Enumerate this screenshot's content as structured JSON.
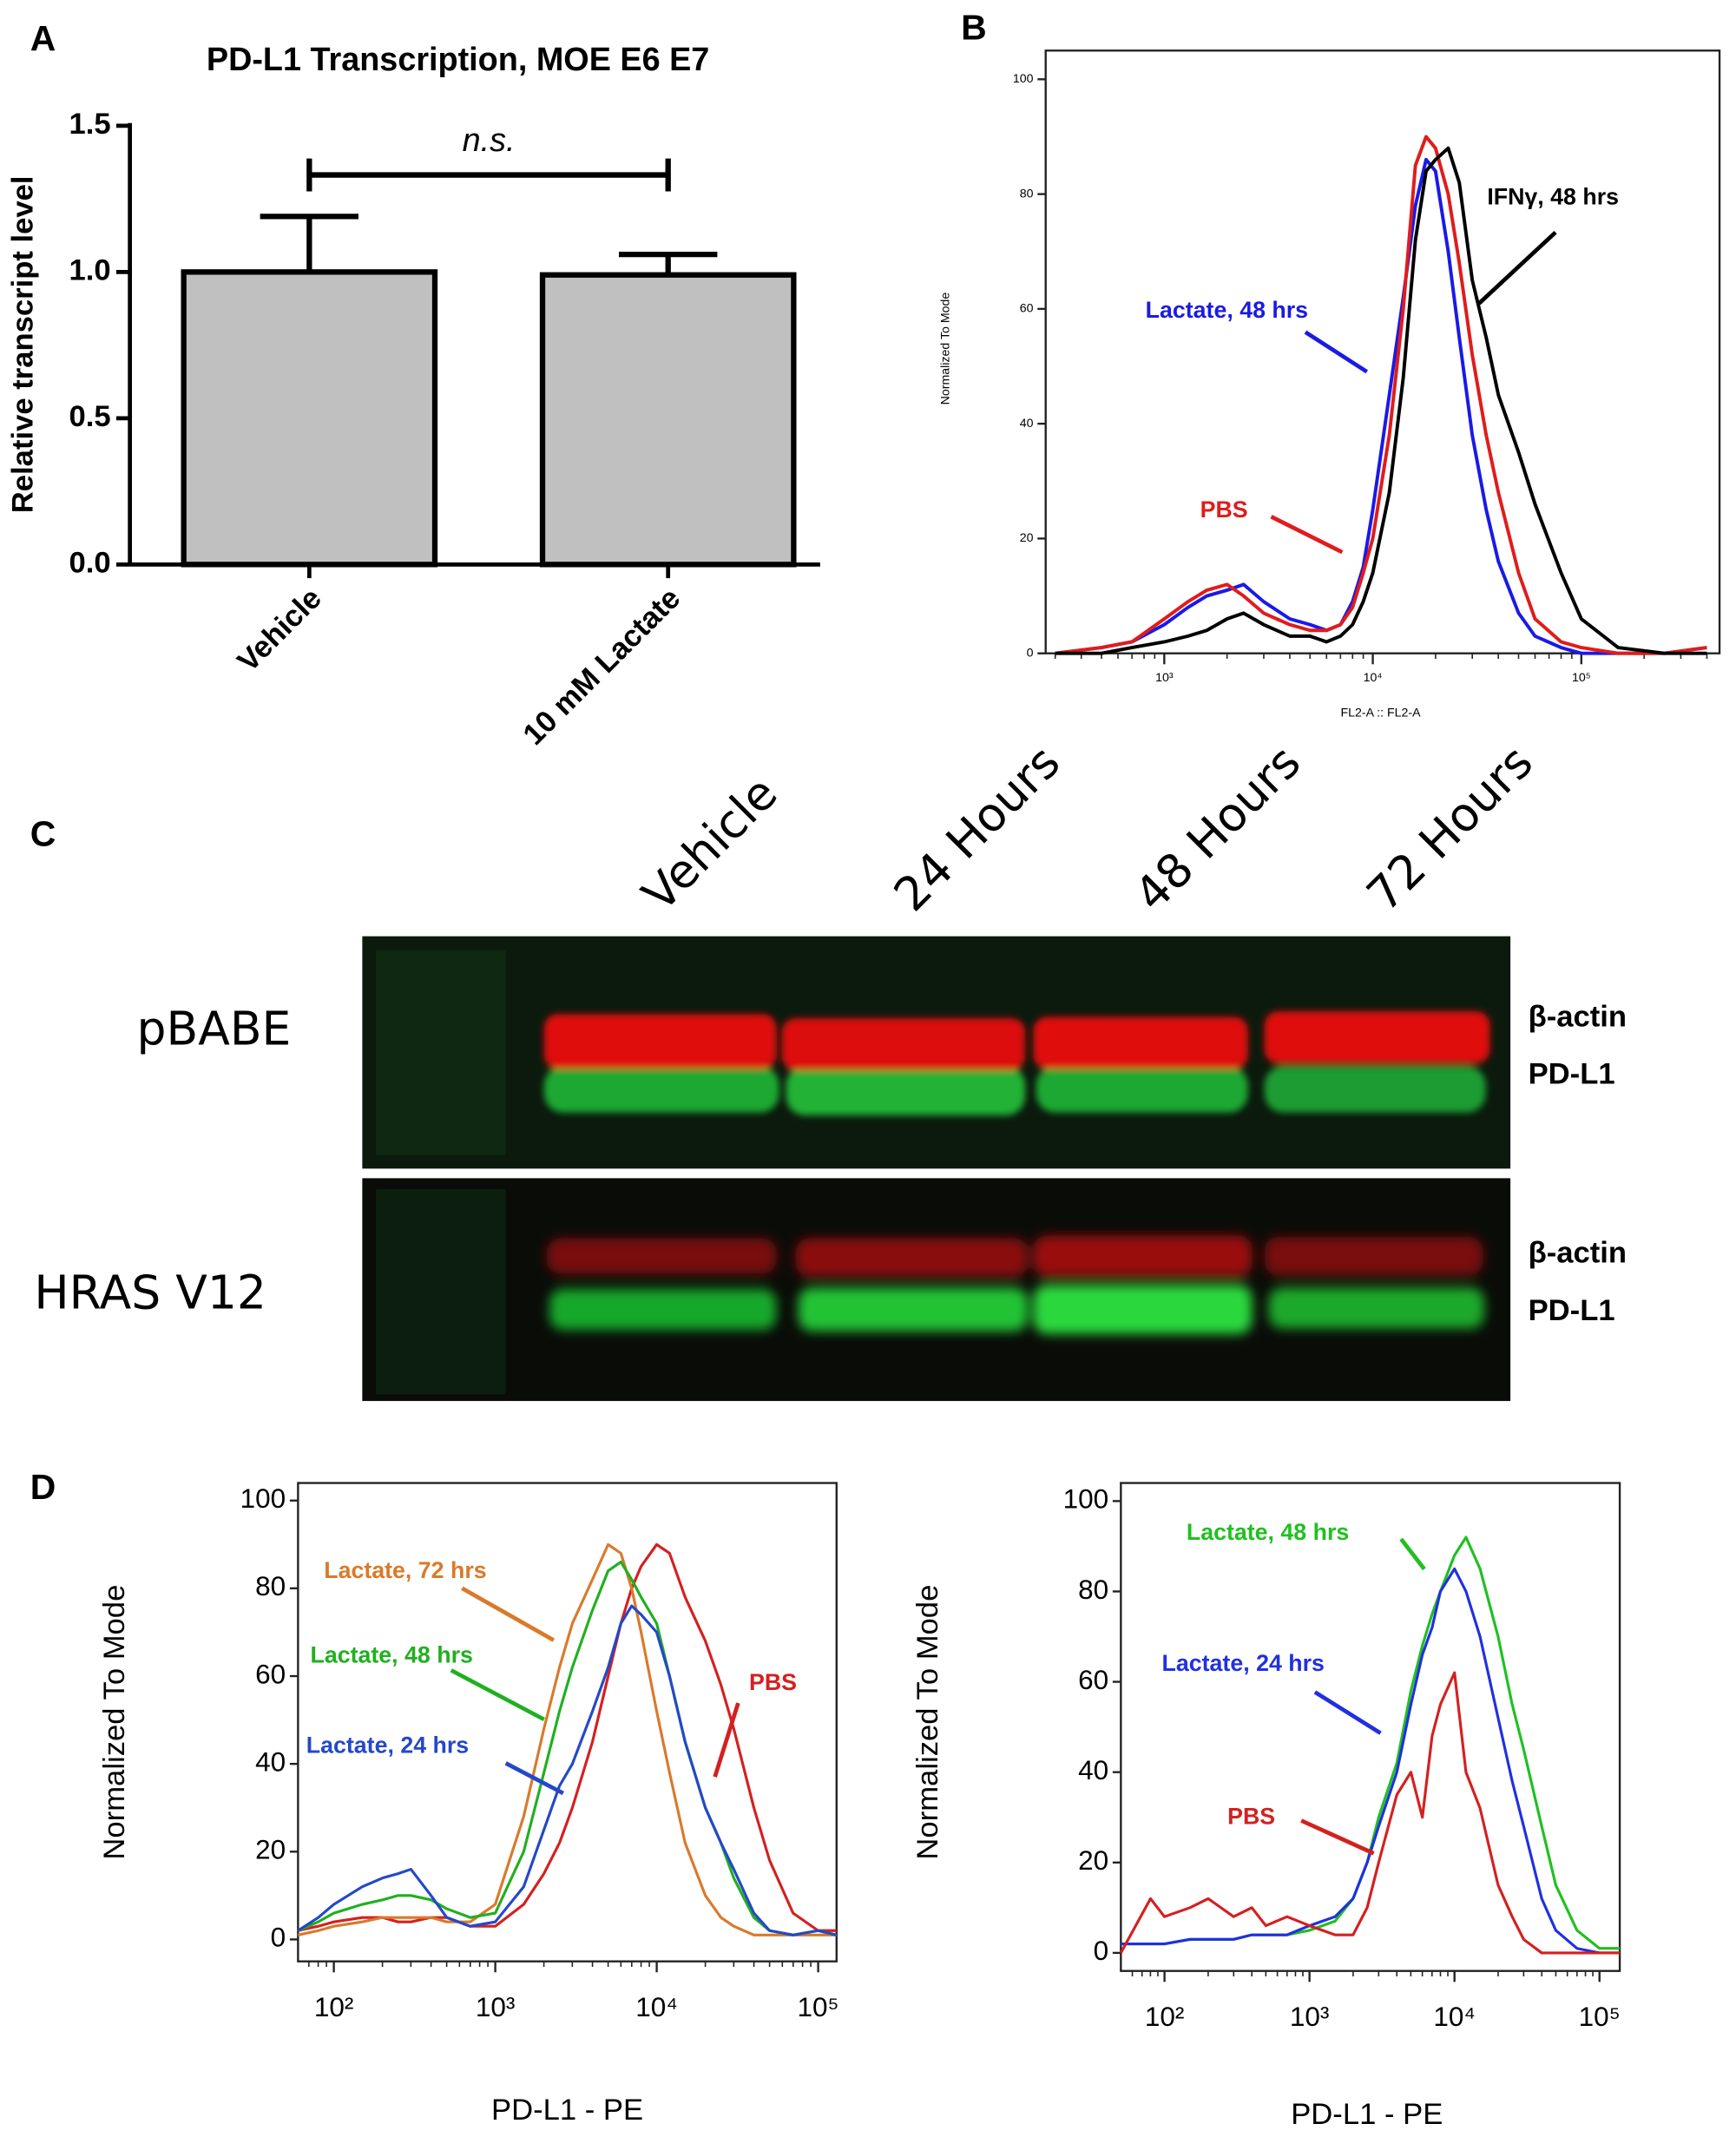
{
  "chart_data": [
    {
      "type": "bar",
      "panel": "A",
      "title": "PD-L1 Transcription, MOE E6 E7",
      "ylabel": "Relative transcript level",
      "categories": [
        "Vehicle",
        "10 mM Lactate"
      ],
      "values": [
        1.0,
        0.99
      ],
      "errors": [
        0.19,
        0.07
      ],
      "color": "#c0c0c0",
      "ylim": [
        0,
        1.5
      ],
      "yticks": [
        {
          "value": 0,
          "label": "0.0"
        },
        0.5,
        {
          "value": 1,
          "label": "1.0"
        },
        1.5
      ],
      "annotation": "n.s."
    },
    {
      "type": "line",
      "panel": "B",
      "xlabel": "FL2-A :: FL2-A",
      "ylabel": "Normalized To Mode",
      "log_x": true,
      "xlim": [
        270,
        460000
      ],
      "xticks": [
        {
          "value": 1000,
          "label": "10³"
        },
        {
          "value": 10000,
          "label": "10⁴"
        },
        {
          "value": 100000,
          "label": "10⁵"
        }
      ],
      "ylim": [
        0,
        105
      ],
      "yticks": [
        0,
        20,
        40,
        60,
        80,
        100
      ],
      "x": [
        300,
        500,
        700,
        1000,
        1300,
        1600,
        2000,
        2400,
        3000,
        4000,
        5000,
        6000,
        7000,
        8000,
        9000,
        10000,
        12000,
        14000,
        16000,
        18000,
        20000,
        23000,
        26000,
        30000,
        35000,
        40000,
        50000,
        60000,
        80000,
        100000,
        150000,
        250000,
        400000
      ],
      "series": [
        {
          "name": "Lactate, 48 hrs",
          "color": "#1a1ae6",
          "values": [
            0,
            1,
            2,
            5,
            8,
            10,
            11,
            12,
            9,
            6,
            5,
            4,
            5,
            9,
            15,
            25,
            45,
            62,
            78,
            86,
            84,
            70,
            55,
            38,
            25,
            16,
            7,
            3,
            1,
            0,
            0,
            0,
            1
          ]
        },
        {
          "name": "PBS",
          "color": "#e01c1c",
          "values": [
            0,
            1,
            2,
            6,
            9,
            11,
            12,
            10,
            7,
            5,
            4,
            4,
            5,
            8,
            14,
            20,
            38,
            60,
            85,
            90,
            88,
            80,
            68,
            52,
            38,
            28,
            14,
            6,
            2,
            1,
            0,
            0,
            1
          ]
        },
        {
          "name": "IFNγ, 48 hrs",
          "color": "#000000",
          "values": [
            0,
            0,
            1,
            2,
            3,
            4,
            6,
            7,
            5,
            3,
            3,
            2,
            3,
            5,
            9,
            14,
            28,
            48,
            72,
            84,
            86,
            88,
            82,
            65,
            55,
            45,
            35,
            26,
            14,
            6,
            1,
            0,
            0
          ]
        }
      ]
    },
    {
      "type": "line",
      "panel": "D",
      "xlabel": "PD-L1 - PE",
      "ylabel": "Normalized To Mode",
      "log_x": true,
      "xlim": [
        60,
        130000
      ],
      "xticks": [
        {
          "value": 100,
          "label": "10²"
        },
        {
          "value": 1000,
          "label": "10³"
        },
        {
          "value": 10000,
          "label": "10⁴"
        },
        {
          "value": 100000,
          "label": "10⁵"
        }
      ],
      "ylim": [
        -5,
        104
      ],
      "yticks": [
        0,
        20,
        40,
        60,
        80,
        100
      ],
      "x": [
        60,
        80,
        100,
        150,
        200,
        250,
        300,
        400,
        500,
        700,
        1000,
        1500,
        2000,
        2500,
        3000,
        4000,
        5000,
        6000,
        7000,
        8000,
        10000,
        12000,
        15000,
        20000,
        25000,
        30000,
        40000,
        50000,
        70000,
        100000,
        130000
      ],
      "series": [
        {
          "name": "PBS",
          "color": "#d42020",
          "values": [
            2,
            3,
            4,
            5,
            5,
            4,
            4,
            5,
            5,
            3,
            3,
            8,
            15,
            22,
            30,
            45,
            60,
            72,
            80,
            85,
            90,
            88,
            78,
            68,
            58,
            48,
            30,
            18,
            6,
            2,
            2
          ]
        },
        {
          "name": "Lactate, 72 hrs",
          "color": "#d97a2a",
          "values": [
            1,
            2,
            3,
            4,
            5,
            5,
            5,
            5,
            4,
            4,
            8,
            28,
            48,
            62,
            72,
            82,
            90,
            88,
            80,
            70,
            52,
            38,
            22,
            10,
            5,
            3,
            1,
            1,
            1,
            1,
            1
          ]
        },
        {
          "name": "Lactate, 48 hrs",
          "color": "#20b020",
          "values": [
            2,
            4,
            6,
            8,
            9,
            10,
            10,
            9,
            7,
            5,
            6,
            20,
            38,
            52,
            62,
            75,
            84,
            86,
            82,
            78,
            72,
            60,
            45,
            30,
            22,
            14,
            5,
            2,
            1,
            2,
            1
          ]
        },
        {
          "name": "Lactate, 24 hrs",
          "color": "#2448c8",
          "values": [
            2,
            5,
            8,
            12,
            14,
            15,
            16,
            10,
            5,
            3,
            4,
            12,
            25,
            35,
            40,
            52,
            62,
            72,
            76,
            74,
            70,
            60,
            45,
            30,
            22,
            16,
            6,
            2,
            1,
            2,
            1
          ]
        }
      ]
    },
    {
      "type": "line",
      "xlabel": "PD-L1 - PE",
      "ylabel": "Normalized To Mode",
      "log_x": true,
      "xlim": [
        50,
        138000
      ],
      "xticks": [
        {
          "value": 100,
          "label": "10²"
        },
        {
          "value": 1000,
          "label": "10³"
        },
        {
          "value": 10000,
          "label": "10⁴"
        },
        {
          "value": 100000,
          "label": "10⁵"
        }
      ],
      "ylim": [
        -4,
        104
      ],
      "yticks": [
        0,
        20,
        40,
        60,
        80,
        100
      ],
      "x": [
        50,
        80,
        100,
        150,
        200,
        300,
        400,
        500,
        700,
        1000,
        1500,
        2000,
        2500,
        3000,
        4000,
        5000,
        6000,
        7000,
        8000,
        10000,
        12000,
        15000,
        20000,
        25000,
        30000,
        40000,
        50000,
        70000,
        100000,
        138000
      ],
      "series": [
        {
          "name": "Lactate, 48 hrs",
          "color": "#20c020",
          "values": [
            2,
            2,
            2,
            3,
            3,
            3,
            4,
            4,
            4,
            5,
            7,
            12,
            20,
            30,
            42,
            58,
            68,
            75,
            80,
            88,
            92,
            85,
            70,
            55,
            45,
            28,
            15,
            5,
            1,
            1
          ]
        },
        {
          "name": "Lactate, 24 hrs",
          "color": "#2030e0",
          "values": [
            2,
            2,
            2,
            3,
            3,
            3,
            4,
            4,
            4,
            6,
            8,
            12,
            20,
            28,
            40,
            55,
            66,
            72,
            80,
            85,
            80,
            70,
            52,
            38,
            28,
            12,
            5,
            1,
            0,
            0
          ]
        },
        {
          "name": "PBS",
          "color": "#d42020",
          "values": [
            0,
            12,
            8,
            10,
            12,
            8,
            10,
            6,
            8,
            6,
            4,
            4,
            10,
            20,
            35,
            40,
            30,
            48,
            55,
            62,
            40,
            32,
            15,
            8,
            3,
            0,
            0,
            0,
            0,
            0
          ]
        }
      ]
    }
  ],
  "blot": {
    "panel": "C",
    "lanes": [
      "Vehicle",
      "24 Hours",
      "48 Hours",
      "72 Hours"
    ],
    "rows": [
      {
        "label": "pBABE",
        "bands": [
          "β-actin",
          "PD-L1"
        ]
      },
      {
        "label": "HRAS V12",
        "bands": [
          "β-actin",
          "PD-L1"
        ]
      }
    ]
  }
}
